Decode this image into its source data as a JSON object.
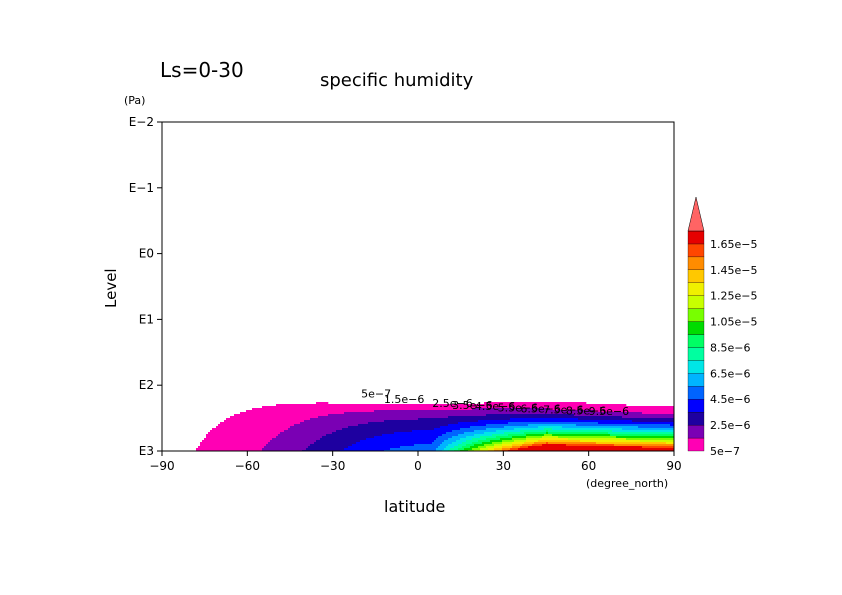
{
  "chart_data": {
    "type": "contour",
    "label_top_left": "Ls=0-30",
    "title": "specific humidity",
    "xlabel": "latitude",
    "x_units": "(degree_north)",
    "ylabel": "Level",
    "y_units": "(Pa)",
    "x_ticks": [
      -90,
      -60,
      -30,
      0,
      30,
      60,
      90
    ],
    "x_tick_labels": [
      "−90",
      "−60",
      "−30",
      "0",
      "30",
      "60",
      "90"
    ],
    "xlim": [
      -90,
      90
    ],
    "y_scale": "log",
    "y_ticks": [
      0.01,
      0.1,
      1,
      10,
      100,
      1000
    ],
    "y_tick_labels": [
      "E−2",
      "E−1",
      "E0",
      "E1",
      "E2",
      "E3"
    ],
    "ylim": [
      1000,
      0.01
    ],
    "levels": [
      5e-07,
      1.5e-06,
      2.5e-06,
      3.5e-06,
      4.5e-06,
      5.5e-06,
      6.5e-06,
      7.5e-06,
      8.5e-06,
      9.5e-06,
      1.05e-05,
      1.15e-05,
      1.25e-05,
      1.35e-05,
      1.45e-05,
      1.55e-05,
      1.65e-05
    ],
    "colorbar_labels": [
      "5e−7",
      "2.5e−6",
      "4.5e−6",
      "6.5e−6",
      "8.5e−6",
      "1.05e−5",
      "1.25e−5",
      "1.45e−5",
      "1.65e−5"
    ],
    "colors": [
      "#ff00b4",
      "#7a00b4",
      "#1e00a0",
      "#0000ff",
      "#0064ff",
      "#00b4ff",
      "#00e6e6",
      "#00ffa0",
      "#00ff64",
      "#00dc00",
      "#78ff00",
      "#c8ff00",
      "#f0f000",
      "#ffc800",
      "#ff8c00",
      "#ff4600",
      "#e60000",
      "#ff6464"
    ],
    "contour_labels": [
      "5e−7",
      "1.5e−6",
      "2.5e−6",
      "3.5e−6",
      "4.5e−6",
      "5.5e−6",
      "6.5e−6",
      "7.5e−6",
      "8.5e−6",
      "9.5e−6"
    ]
  }
}
